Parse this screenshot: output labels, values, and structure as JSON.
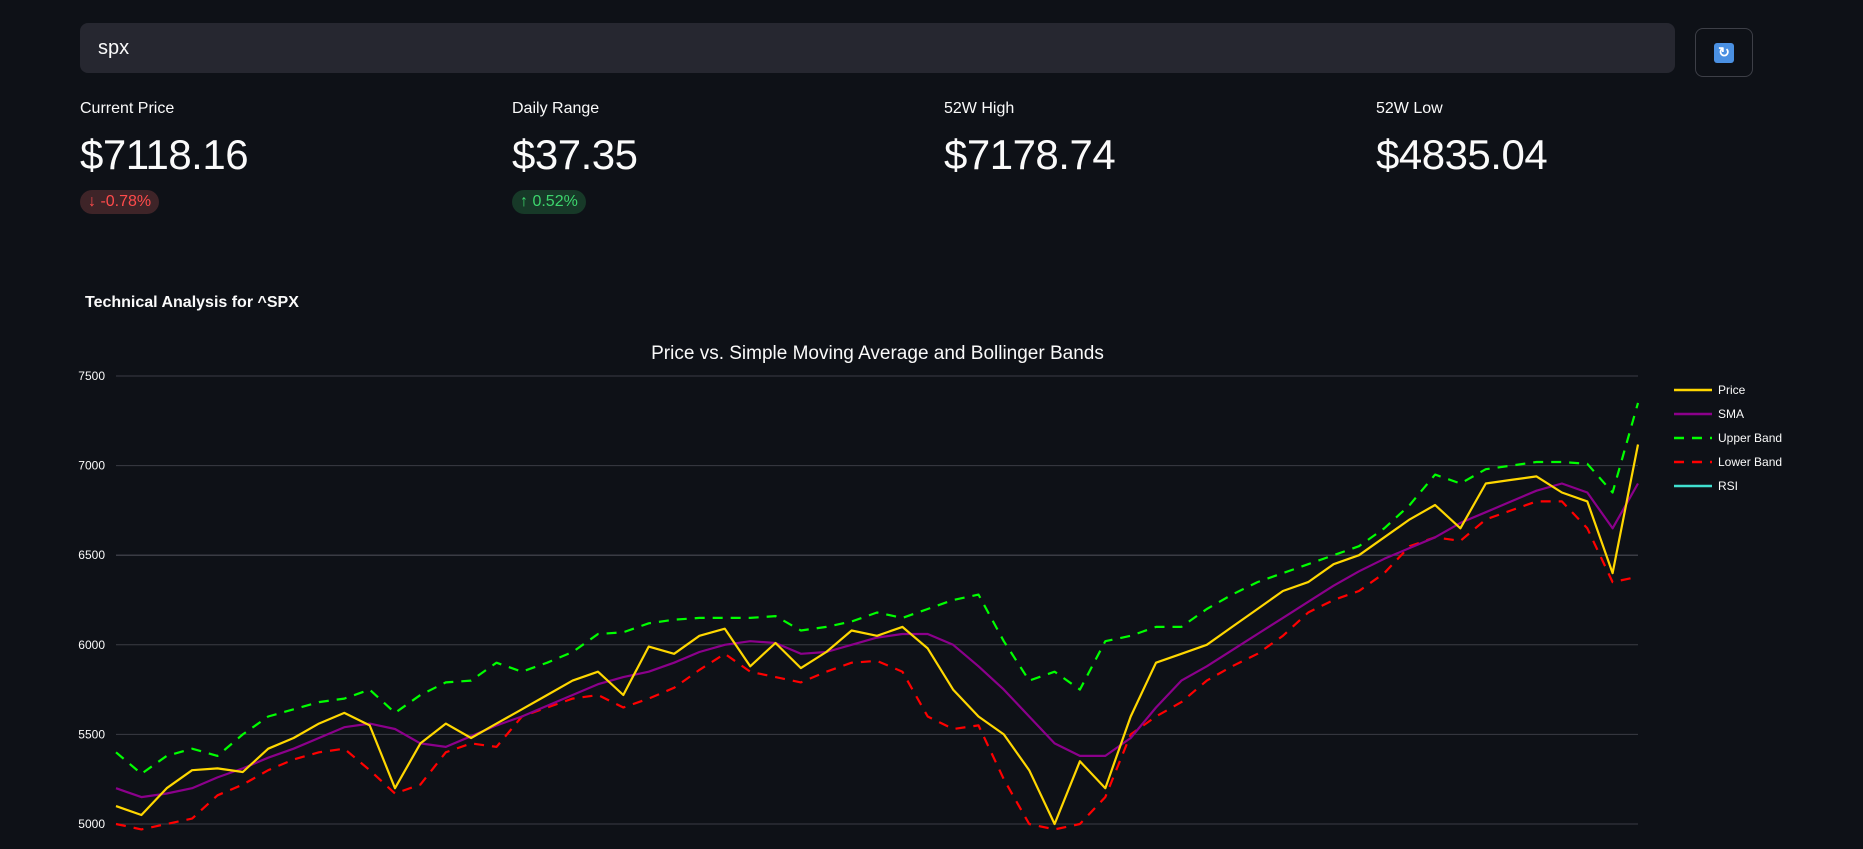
{
  "search": {
    "value": "spx",
    "placeholder": ""
  },
  "refresh_button": {
    "icon": "refresh-icon",
    "label": "🔄"
  },
  "metrics": [
    {
      "label": "Current Price",
      "value": "$7118.16",
      "delta": "-0.78%",
      "direction": "down",
      "arrow": "↓"
    },
    {
      "label": "Daily Range",
      "value": "$37.35",
      "delta": "0.52%",
      "direction": "up",
      "arrow": "↑"
    },
    {
      "label": "52W High",
      "value": "$7178.74"
    },
    {
      "label": "52W Low",
      "value": "$4835.04"
    }
  ],
  "section_title": "Technical Analysis for ^SPX",
  "colors": {
    "background": "#0e1117",
    "price": "#ffd700",
    "sma": "#8b008b",
    "upper": "#00ff00",
    "lower": "#ff0000",
    "rsi": "#40e0d0",
    "grid": "#3a3c44"
  },
  "chart_data": {
    "type": "line",
    "title": "Price vs. Simple Moving Average and Bollinger Bands",
    "xlabel": "",
    "ylabel": "",
    "ylim": [
      4950,
      7500
    ],
    "yticks": [
      5000,
      5500,
      6000,
      6500,
      7000,
      7500
    ],
    "grid": true,
    "legend_position": "right",
    "legend": [
      "Price",
      "SMA",
      "Upper Band",
      "Lower Band",
      "RSI"
    ],
    "x_index": [
      0,
      1,
      2,
      3,
      4,
      5,
      6,
      7,
      8,
      9,
      10,
      11,
      12,
      13,
      14,
      15,
      16,
      17,
      18,
      19,
      20,
      21,
      22,
      23,
      24,
      25,
      26,
      27,
      28,
      29,
      30,
      31,
      32,
      33,
      34,
      35,
      36,
      37,
      38,
      39,
      40,
      41,
      42,
      43,
      44,
      45,
      46,
      47,
      48,
      49,
      50,
      51,
      52,
      53,
      54,
      55,
      56,
      57,
      58,
      59,
      60
    ],
    "series": [
      {
        "name": "Price",
        "style": "solid",
        "values": [
          5100,
          5050,
          5200,
          5300,
          5310,
          5290,
          5420,
          5480,
          5560,
          5620,
          5550,
          5200,
          5450,
          5560,
          5480,
          5560,
          5640,
          5720,
          5800,
          5850,
          5720,
          5990,
          5950,
          6050,
          6090,
          5880,
          6010,
          5870,
          5960,
          6080,
          6050,
          6100,
          5980,
          5750,
          5600,
          5500,
          5300,
          5000,
          5350,
          5200,
          5600,
          5900,
          5950,
          6000,
          6100,
          6200,
          6300,
          6350,
          6450,
          6500,
          6600,
          6700,
          6780,
          6650,
          6900,
          6920,
          6940,
          6850,
          6800,
          6400,
          7118
        ]
      },
      {
        "name": "SMA",
        "style": "solid",
        "values": [
          5200,
          5150,
          5170,
          5200,
          5260,
          5310,
          5370,
          5420,
          5480,
          5540,
          5560,
          5530,
          5450,
          5430,
          5490,
          5550,
          5600,
          5660,
          5720,
          5780,
          5820,
          5850,
          5900,
          5960,
          6000,
          6020,
          6010,
          5950,
          5960,
          6000,
          6040,
          6060,
          6060,
          6000,
          5880,
          5750,
          5600,
          5450,
          5380,
          5380,
          5480,
          5650,
          5800,
          5880,
          5970,
          6060,
          6150,
          6240,
          6330,
          6410,
          6480,
          6540,
          6600,
          6680,
          6740,
          6800,
          6860,
          6900,
          6850,
          6650,
          6900
        ]
      },
      {
        "name": "Upper Band",
        "style": "dash",
        "values": [
          5400,
          5280,
          5380,
          5420,
          5380,
          5500,
          5600,
          5640,
          5680,
          5700,
          5750,
          5620,
          5720,
          5790,
          5800,
          5900,
          5850,
          5900,
          5960,
          6060,
          6070,
          6120,
          6140,
          6150,
          6150,
          6150,
          6160,
          6080,
          6100,
          6130,
          6180,
          6150,
          6200,
          6250,
          6280,
          6020,
          5800,
          5850,
          5750,
          6020,
          6050,
          6100,
          6100,
          6200,
          6280,
          6350,
          6400,
          6450,
          6500,
          6550,
          6650,
          6780,
          6950,
          6900,
          6980,
          7000,
          7020,
          7020,
          7010,
          6850,
          7350
        ]
      },
      {
        "name": "Lower Band",
        "style": "dash",
        "values": [
          5000,
          4970,
          5000,
          5030,
          5160,
          5220,
          5300,
          5360,
          5400,
          5420,
          5300,
          5170,
          5220,
          5400,
          5450,
          5430,
          5600,
          5650,
          5700,
          5720,
          5650,
          5700,
          5760,
          5860,
          5950,
          5850,
          5820,
          5790,
          5850,
          5900,
          5910,
          5850,
          5600,
          5530,
          5550,
          5250,
          5000,
          4970,
          5000,
          5150,
          5500,
          5600,
          5680,
          5800,
          5880,
          5950,
          6050,
          6180,
          6250,
          6300,
          6400,
          6550,
          6600,
          6580,
          6700,
          6750,
          6800,
          6800,
          6650,
          6350,
          6380
        ]
      },
      {
        "name": "RSI",
        "style": "solid",
        "values": []
      }
    ]
  }
}
